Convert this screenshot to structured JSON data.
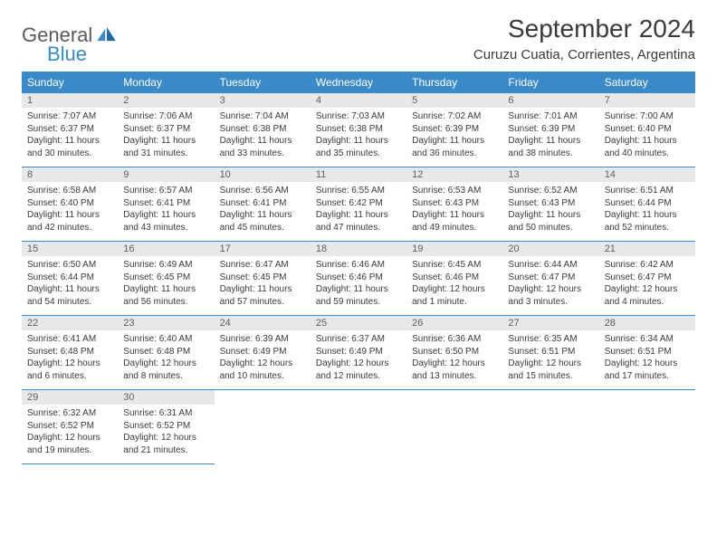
{
  "brand": {
    "general": "General",
    "blue": "Blue"
  },
  "title": "September 2024",
  "location": "Curuzu Cuatia, Corrientes, Argentina",
  "colors": {
    "header_bg": "#3a8ac9",
    "header_text": "#ffffff",
    "daynum_bg": "#e8e8e8",
    "daynum_text": "#606060",
    "body_text": "#3a3a3a",
    "rule": "#3a8ac9",
    "logo_gray": "#5a5a5a",
    "logo_blue": "#3a8ac9",
    "page_bg": "#ffffff"
  },
  "typography": {
    "title_fontsize": 28,
    "location_fontsize": 15,
    "dayhead_fontsize": 12,
    "daynum_fontsize": 11,
    "body_fontsize": 10,
    "font_family": "Arial"
  },
  "layout": {
    "columns": 7,
    "rows": 5,
    "cell_width_pct": 14.28
  },
  "weekdays": [
    "Sunday",
    "Monday",
    "Tuesday",
    "Wednesday",
    "Thursday",
    "Friday",
    "Saturday"
  ],
  "days": [
    {
      "n": "1",
      "sunrise": "7:07 AM",
      "sunset": "6:37 PM",
      "daylight": "11 hours and 30 minutes."
    },
    {
      "n": "2",
      "sunrise": "7:06 AM",
      "sunset": "6:37 PM",
      "daylight": "11 hours and 31 minutes."
    },
    {
      "n": "3",
      "sunrise": "7:04 AM",
      "sunset": "6:38 PM",
      "daylight": "11 hours and 33 minutes."
    },
    {
      "n": "4",
      "sunrise": "7:03 AM",
      "sunset": "6:38 PM",
      "daylight": "11 hours and 35 minutes."
    },
    {
      "n": "5",
      "sunrise": "7:02 AM",
      "sunset": "6:39 PM",
      "daylight": "11 hours and 36 minutes."
    },
    {
      "n": "6",
      "sunrise": "7:01 AM",
      "sunset": "6:39 PM",
      "daylight": "11 hours and 38 minutes."
    },
    {
      "n": "7",
      "sunrise": "7:00 AM",
      "sunset": "6:40 PM",
      "daylight": "11 hours and 40 minutes."
    },
    {
      "n": "8",
      "sunrise": "6:58 AM",
      "sunset": "6:40 PM",
      "daylight": "11 hours and 42 minutes."
    },
    {
      "n": "9",
      "sunrise": "6:57 AM",
      "sunset": "6:41 PM",
      "daylight": "11 hours and 43 minutes."
    },
    {
      "n": "10",
      "sunrise": "6:56 AM",
      "sunset": "6:41 PM",
      "daylight": "11 hours and 45 minutes."
    },
    {
      "n": "11",
      "sunrise": "6:55 AM",
      "sunset": "6:42 PM",
      "daylight": "11 hours and 47 minutes."
    },
    {
      "n": "12",
      "sunrise": "6:53 AM",
      "sunset": "6:43 PM",
      "daylight": "11 hours and 49 minutes."
    },
    {
      "n": "13",
      "sunrise": "6:52 AM",
      "sunset": "6:43 PM",
      "daylight": "11 hours and 50 minutes."
    },
    {
      "n": "14",
      "sunrise": "6:51 AM",
      "sunset": "6:44 PM",
      "daylight": "11 hours and 52 minutes."
    },
    {
      "n": "15",
      "sunrise": "6:50 AM",
      "sunset": "6:44 PM",
      "daylight": "11 hours and 54 minutes."
    },
    {
      "n": "16",
      "sunrise": "6:49 AM",
      "sunset": "6:45 PM",
      "daylight": "11 hours and 56 minutes."
    },
    {
      "n": "17",
      "sunrise": "6:47 AM",
      "sunset": "6:45 PM",
      "daylight": "11 hours and 57 minutes."
    },
    {
      "n": "18",
      "sunrise": "6:46 AM",
      "sunset": "6:46 PM",
      "daylight": "11 hours and 59 minutes."
    },
    {
      "n": "19",
      "sunrise": "6:45 AM",
      "sunset": "6:46 PM",
      "daylight": "12 hours and 1 minute."
    },
    {
      "n": "20",
      "sunrise": "6:44 AM",
      "sunset": "6:47 PM",
      "daylight": "12 hours and 3 minutes."
    },
    {
      "n": "21",
      "sunrise": "6:42 AM",
      "sunset": "6:47 PM",
      "daylight": "12 hours and 4 minutes."
    },
    {
      "n": "22",
      "sunrise": "6:41 AM",
      "sunset": "6:48 PM",
      "daylight": "12 hours and 6 minutes."
    },
    {
      "n": "23",
      "sunrise": "6:40 AM",
      "sunset": "6:48 PM",
      "daylight": "12 hours and 8 minutes."
    },
    {
      "n": "24",
      "sunrise": "6:39 AM",
      "sunset": "6:49 PM",
      "daylight": "12 hours and 10 minutes."
    },
    {
      "n": "25",
      "sunrise": "6:37 AM",
      "sunset": "6:49 PM",
      "daylight": "12 hours and 12 minutes."
    },
    {
      "n": "26",
      "sunrise": "6:36 AM",
      "sunset": "6:50 PM",
      "daylight": "12 hours and 13 minutes."
    },
    {
      "n": "27",
      "sunrise": "6:35 AM",
      "sunset": "6:51 PM",
      "daylight": "12 hours and 15 minutes."
    },
    {
      "n": "28",
      "sunrise": "6:34 AM",
      "sunset": "6:51 PM",
      "daylight": "12 hours and 17 minutes."
    },
    {
      "n": "29",
      "sunrise": "6:32 AM",
      "sunset": "6:52 PM",
      "daylight": "12 hours and 19 minutes."
    },
    {
      "n": "30",
      "sunrise": "6:31 AM",
      "sunset": "6:52 PM",
      "daylight": "12 hours and 21 minutes."
    }
  ],
  "labels": {
    "sunrise": "Sunrise:",
    "sunset": "Sunset:",
    "daylight": "Daylight:"
  }
}
